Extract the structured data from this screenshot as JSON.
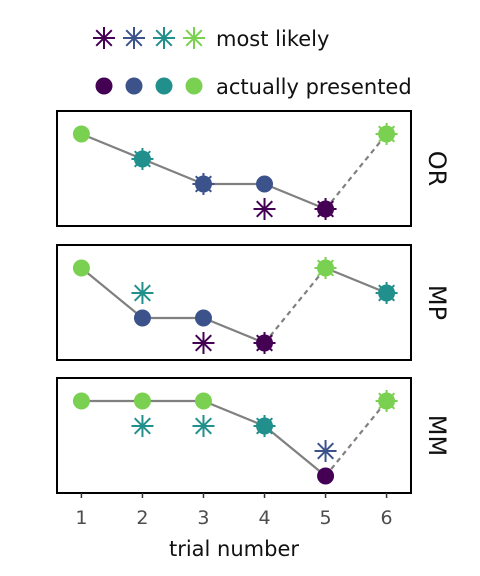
{
  "chart_data": {
    "type": "line",
    "xlabel": "trial number",
    "x": [
      1,
      2,
      3,
      4,
      5,
      6
    ],
    "xlim": [
      0.6,
      6.4
    ],
    "colors": {
      "purple": "#440154",
      "blue": "#3b528b",
      "teal": "#21908c",
      "green": "#7ad151",
      "line": "#808080"
    },
    "legend": {
      "position": "top",
      "most_likely_label": "most likely",
      "presented_label": "actually presented",
      "colors": [
        "purple",
        "blue",
        "teal",
        "green"
      ]
    },
    "panels": [
      {
        "name": "OR",
        "presented": [
          {
            "x": 1,
            "y": 4,
            "color": "green"
          },
          {
            "x": 2,
            "y": 3,
            "color": "teal"
          },
          {
            "x": 3,
            "y": 2,
            "color": "blue"
          },
          {
            "x": 4,
            "y": 2,
            "color": "blue"
          },
          {
            "x": 5,
            "y": 1,
            "color": "purple"
          },
          {
            "x": 6,
            "y": 4,
            "color": "green"
          }
        ],
        "most_likely": [
          {
            "x": 2,
            "y": 3,
            "color": "teal"
          },
          {
            "x": 3,
            "y": 2,
            "color": "blue"
          },
          {
            "x": 4,
            "y": 1,
            "color": "purple"
          },
          {
            "x": 5,
            "y": 1,
            "color": "purple"
          },
          {
            "x": 6,
            "y": 4,
            "color": "green"
          }
        ],
        "dashed_segments": [
          [
            5,
            6
          ]
        ]
      },
      {
        "name": "MP",
        "presented": [
          {
            "x": 1,
            "y": 4,
            "color": "green"
          },
          {
            "x": 2,
            "y": 2,
            "color": "blue"
          },
          {
            "x": 3,
            "y": 2,
            "color": "blue"
          },
          {
            "x": 4,
            "y": 1,
            "color": "purple"
          },
          {
            "x": 5,
            "y": 4,
            "color": "green"
          },
          {
            "x": 6,
            "y": 3,
            "color": "teal"
          }
        ],
        "most_likely": [
          {
            "x": 2,
            "y": 3,
            "color": "teal"
          },
          {
            "x": 3,
            "y": 1,
            "color": "purple"
          },
          {
            "x": 4,
            "y": 1,
            "color": "purple"
          },
          {
            "x": 5,
            "y": 4,
            "color": "green"
          },
          {
            "x": 6,
            "y": 3,
            "color": "teal"
          }
        ],
        "dashed_segments": [
          [
            4,
            5
          ]
        ]
      },
      {
        "name": "MM",
        "presented": [
          {
            "x": 1,
            "y": 4,
            "color": "green"
          },
          {
            "x": 2,
            "y": 4,
            "color": "green"
          },
          {
            "x": 3,
            "y": 4,
            "color": "green"
          },
          {
            "x": 4,
            "y": 3,
            "color": "teal"
          },
          {
            "x": 5,
            "y": 1,
            "color": "purple"
          },
          {
            "x": 6,
            "y": 4,
            "color": "green"
          }
        ],
        "most_likely": [
          {
            "x": 2,
            "y": 3,
            "color": "teal"
          },
          {
            "x": 3,
            "y": 3,
            "color": "teal"
          },
          {
            "x": 4,
            "y": 3,
            "color": "teal"
          },
          {
            "x": 5,
            "y": 2,
            "color": "blue"
          },
          {
            "x": 6,
            "y": 4,
            "color": "green"
          }
        ],
        "dashed_segments": [
          [
            5,
            6
          ]
        ]
      }
    ]
  }
}
